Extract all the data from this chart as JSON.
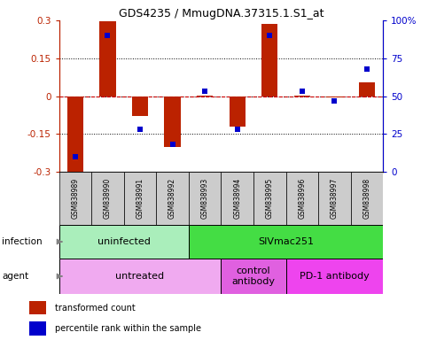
{
  "title": "GDS4235 / MmugDNA.37315.1.S1_at",
  "samples": [
    "GSM838989",
    "GSM838990",
    "GSM838991",
    "GSM838992",
    "GSM838993",
    "GSM838994",
    "GSM838995",
    "GSM838996",
    "GSM838997",
    "GSM838998"
  ],
  "red_values": [
    -0.3,
    0.295,
    -0.08,
    -0.2,
    0.002,
    -0.12,
    0.285,
    0.002,
    -0.005,
    0.055
  ],
  "blue_values": [
    10,
    90,
    28,
    18,
    53,
    28,
    90,
    53,
    47,
    68
  ],
  "ylim_left": [
    -0.3,
    0.3
  ],
  "ylim_right": [
    0,
    100
  ],
  "yticks_left": [
    -0.3,
    -0.15,
    0,
    0.15,
    0.3
  ],
  "yticks_right": [
    0,
    25,
    50,
    75,
    100
  ],
  "ytick_labels_right": [
    "0",
    "25",
    "50",
    "75",
    "100%"
  ],
  "red_color": "#bb2200",
  "blue_color": "#0000cc",
  "zero_line_color": "#cc0000",
  "grid_color": "#000000",
  "infection_groups": [
    {
      "label": "uninfected",
      "start": 0,
      "end": 3,
      "color": "#aaeebb"
    },
    {
      "label": "SIVmac251",
      "start": 4,
      "end": 9,
      "color": "#44dd44"
    }
  ],
  "agent_groups": [
    {
      "label": "untreated",
      "start": 0,
      "end": 4,
      "color": "#f0aaf0"
    },
    {
      "label": "control\nantibody",
      "start": 5,
      "end": 6,
      "color": "#e060e0"
    },
    {
      "label": "PD-1 antibody",
      "start": 7,
      "end": 9,
      "color": "#ee44ee"
    }
  ],
  "infection_label": "infection",
  "agent_label": "agent",
  "legend_red": "transformed count",
  "legend_blue": "percentile rank within the sample",
  "sample_bg": "#cccccc"
}
